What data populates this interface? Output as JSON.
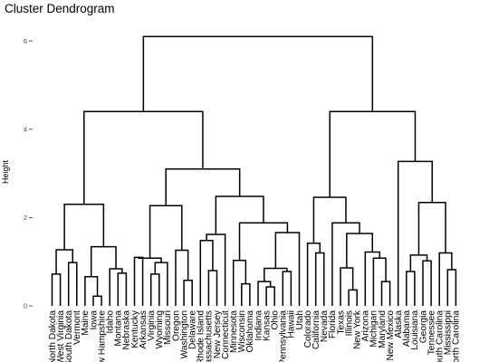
{
  "chart_data": {
    "type": "dendrogram",
    "title": "Cluster Dendrogram",
    "ylabel": "Height",
    "ylim": [
      0,
      6.1
    ],
    "yticks": [
      0,
      2,
      4,
      6
    ],
    "grid": false,
    "leaves": [
      "North Dakota",
      "West Virginia",
      "South Dakota",
      "Vermont",
      "Maine",
      "Iowa",
      "New Hampshire",
      "Idaho",
      "Montana",
      "Nebraska",
      "Kentucky",
      "Arkansas",
      "Virginia",
      "Wyoming",
      "Missouri",
      "Oregon",
      "Washington",
      "Delaware",
      "Rhode Island",
      "Massachusetts",
      "New Jersey",
      "Connecticut",
      "Minnesota",
      "Wisconsin",
      "Oklahoma",
      "Indiana",
      "Kansas",
      "Ohio",
      "Pennsylvania",
      "Hawaii",
      "Utah",
      "Colorado",
      "California",
      "Nevada",
      "Florida",
      "Texas",
      "Illinois",
      "New York",
      "Arizona",
      "Michigan",
      "Maryland",
      "New Mexico",
      "Alaska",
      "Alabama",
      "Louisiana",
      "Georgia",
      "Tennessee",
      "South Carolina",
      "Mississippi",
      "North Carolina"
    ],
    "merges": [
      {
        "a": "L:North Dakota",
        "b": "L:West Virginia",
        "h": 0.72
      },
      {
        "a": "L:South Dakota",
        "b": "L:Vermont",
        "h": 0.98
      },
      {
        "a": "M:0",
        "b": "M:1",
        "h": 1.27
      },
      {
        "a": "L:Iowa",
        "b": "L:New Hampshire",
        "h": 0.22
      },
      {
        "a": "L:Maine",
        "b": "M:3",
        "h": 0.66
      },
      {
        "a": "L:Montana",
        "b": "L:Nebraska",
        "h": 0.74
      },
      {
        "a": "L:Idaho",
        "b": "M:5",
        "h": 0.84
      },
      {
        "a": "M:4",
        "b": "M:6",
        "h": 1.34
      },
      {
        "a": "M:2",
        "b": "M:7",
        "h": 2.3
      },
      {
        "a": "L:Kentucky",
        "b": "L:Arkansas",
        "h": 1.1
      },
      {
        "a": "L:Virginia",
        "b": "L:Wyoming",
        "h": 0.72
      },
      {
        "a": "L:Missouri",
        "b": "M:10",
        "h": 0.98
      },
      {
        "a": "M:9",
        "b": "M:11",
        "h": 1.08
      },
      {
        "a": "L:Washington",
        "b": "L:Delaware",
        "h": 0.58
      },
      {
        "a": "L:Oregon",
        "b": "M:13",
        "h": 1.26
      },
      {
        "a": "M:12",
        "b": "M:14",
        "h": 2.27
      },
      {
        "a": "L:Massachusetts",
        "b": "L:New Jersey",
        "h": 0.8
      },
      {
        "a": "L:Rhode Island",
        "b": "M:16",
        "h": 1.48
      },
      {
        "a": "L:Connecticut",
        "b": "M:17",
        "h": 1.62
      },
      {
        "a": "L:Wisconsin",
        "b": "L:Oklahoma",
        "h": 0.5
      },
      {
        "a": "L:Minnesota",
        "b": "M:19",
        "h": 1.03
      },
      {
        "a": "L:Kansas",
        "b": "L:Ohio",
        "h": 0.43
      },
      {
        "a": "L:Indiana",
        "b": "M:21",
        "h": 0.55
      },
      {
        "a": "L:Pennsylvania",
        "b": "L:Hawaii",
        "h": 0.78
      },
      {
        "a": "M:22",
        "b": "M:23",
        "h": 0.85
      },
      {
        "a": "M:24",
        "b": "L:Utah",
        "h": 1.66
      },
      {
        "a": "M:20",
        "b": "M:25",
        "h": 1.88
      },
      {
        "a": "M:18",
        "b": "M:26",
        "h": 2.48
      },
      {
        "a": "M:15",
        "b": "M:27",
        "h": 3.1
      },
      {
        "a": "M:8",
        "b": "M:28",
        "h": 4.4
      },
      {
        "a": "L:California",
        "b": "L:Nevada",
        "h": 1.2
      },
      {
        "a": "L:Colorado",
        "b": "M:30",
        "h": 1.42
      },
      {
        "a": "L:Illinois",
        "b": "L:New York",
        "h": 0.36
      },
      {
        "a": "L:Texas",
        "b": "M:32",
        "h": 0.86
      },
      {
        "a": "L:Maryland",
        "b": "L:New Mexico",
        "h": 0.55
      },
      {
        "a": "L:Michigan",
        "b": "M:34",
        "h": 1.08
      },
      {
        "a": "L:Arizona",
        "b": "M:35",
        "h": 1.22
      },
      {
        "a": "M:33",
        "b": "M:36",
        "h": 1.64
      },
      {
        "a": "L:Florida",
        "b": "M:37",
        "h": 1.88
      },
      {
        "a": "M:31",
        "b": "M:38",
        "h": 2.46
      },
      {
        "a": "L:Alabama",
        "b": "L:Louisiana",
        "h": 0.78
      },
      {
        "a": "L:Georgia",
        "b": "L:Tennessee",
        "h": 1.02
      },
      {
        "a": "M:40",
        "b": "M:41",
        "h": 1.15
      },
      {
        "a": "L:Mississippi",
        "b": "L:North Carolina",
        "h": 0.82
      },
      {
        "a": "L:South Carolina",
        "b": "M:43",
        "h": 1.2
      },
      {
        "a": "M:42",
        "b": "M:44",
        "h": 2.34
      },
      {
        "a": "L:Alaska",
        "b": "M:45",
        "h": 3.27
      },
      {
        "a": "M:39",
        "b": "M:46",
        "h": 4.4
      },
      {
        "a": "M:29",
        "b": "M:47",
        "h": 6.1
      }
    ]
  }
}
